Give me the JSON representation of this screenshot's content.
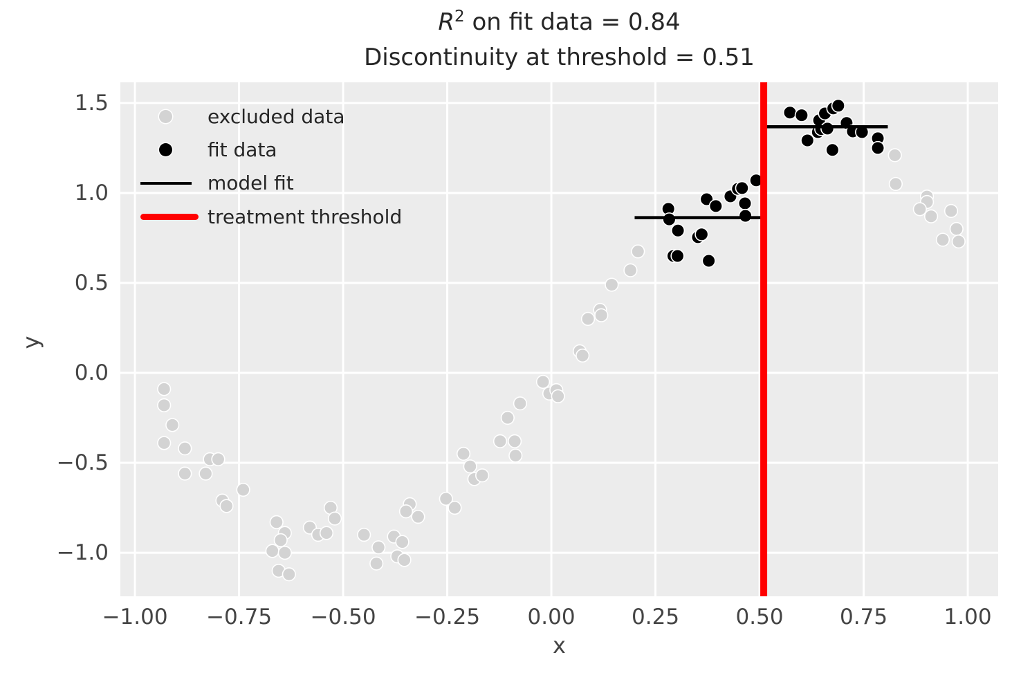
{
  "title": {
    "r_symbol": "R",
    "r_exponent": "2",
    "line1_rest": " on fit data = 0.84",
    "line2": "Discontinuity at threshold = 0.51"
  },
  "axes": {
    "xlabel": "x",
    "ylabel": "y",
    "x_ticks": [
      {
        "value": -1.0,
        "label": "−1.00"
      },
      {
        "value": -0.75,
        "label": "−0.75"
      },
      {
        "value": -0.5,
        "label": "−0.50"
      },
      {
        "value": -0.25,
        "label": "−0.25"
      },
      {
        "value": 0.0,
        "label": "0.00"
      },
      {
        "value": 0.25,
        "label": "0.25"
      },
      {
        "value": 0.5,
        "label": "0.50"
      },
      {
        "value": 0.75,
        "label": "0.75"
      },
      {
        "value": 1.0,
        "label": "1.00"
      }
    ],
    "y_ticks": [
      {
        "value": 1.5,
        "label": "1.5"
      },
      {
        "value": 1.0,
        "label": "1.0"
      },
      {
        "value": 0.5,
        "label": "0.5"
      },
      {
        "value": 0.0,
        "label": "0.0"
      },
      {
        "value": -0.5,
        "label": "−0.5"
      },
      {
        "value": -1.0,
        "label": "−1.0"
      }
    ]
  },
  "legend": {
    "items": [
      {
        "label": "excluded data",
        "marker": "dot",
        "color": "#d3d3d3"
      },
      {
        "label": "fit data",
        "marker": "dot",
        "color": "#000000"
      },
      {
        "label": "model fit",
        "marker": "line",
        "color": "#000000"
      },
      {
        "label": "treatment threshold",
        "marker": "line-thick",
        "color": "#ff0000"
      }
    ]
  },
  "chart_data": {
    "type": "scatter",
    "title": "R^2 on fit data = 0.84\nDiscontinuity at threshold = 0.51",
    "xlabel": "x",
    "ylabel": "y",
    "xlim": [
      -1.035,
      1.073
    ],
    "ylim": [
      -1.242,
      1.615
    ],
    "grid": true,
    "background_color": "#ececec",
    "gridline_color": "#ffffff",
    "r2_on_fit_data": 0.84,
    "discontinuity_at_threshold": 0.51,
    "treatment_threshold": {
      "x": 0.51,
      "color": "#ff0000",
      "linewidth": 10
    },
    "model_fit": {
      "color": "#000000",
      "linewidth": 4.5,
      "segments": [
        {
          "x_start": 0.2,
          "x_end": 0.51,
          "y": 0.863
        },
        {
          "x_start": 0.51,
          "x_end": 0.808,
          "y": 1.368
        }
      ]
    },
    "series": [
      {
        "name": "excluded data",
        "color": "#d3d3d3",
        "edge_color": "#ffffff",
        "points": [
          [
            -0.93,
            -0.09
          ],
          [
            -0.93,
            -0.18
          ],
          [
            -0.91,
            -0.29
          ],
          [
            -0.93,
            -0.39
          ],
          [
            -0.88,
            -0.42
          ],
          [
            -0.82,
            -0.48
          ],
          [
            -0.8,
            -0.48
          ],
          [
            -0.88,
            -0.56
          ],
          [
            -0.83,
            -0.56
          ],
          [
            -0.74,
            -0.65
          ],
          [
            -0.79,
            -0.71
          ],
          [
            -0.78,
            -0.74
          ],
          [
            -0.66,
            -0.83
          ],
          [
            -0.64,
            -0.89
          ],
          [
            -0.65,
            -0.93
          ],
          [
            -0.58,
            -0.86
          ],
          [
            -0.56,
            -0.9
          ],
          [
            -0.54,
            -0.89
          ],
          [
            -0.53,
            -0.75
          ],
          [
            -0.52,
            -0.81
          ],
          [
            -0.67,
            -0.99
          ],
          [
            -0.64,
            -1.0
          ],
          [
            -0.655,
            -1.1
          ],
          [
            -0.63,
            -1.12
          ],
          [
            -0.45,
            -0.9
          ],
          [
            -0.415,
            -0.97
          ],
          [
            -0.42,
            -1.06
          ],
          [
            -0.378,
            -0.91
          ],
          [
            -0.37,
            -1.02
          ],
          [
            -0.358,
            -0.94
          ],
          [
            -0.353,
            -1.04
          ],
          [
            -0.34,
            -0.73
          ],
          [
            -0.349,
            -0.77
          ],
          [
            -0.32,
            -0.8
          ],
          [
            -0.253,
            -0.7
          ],
          [
            -0.232,
            -0.75
          ],
          [
            -0.211,
            -0.45
          ],
          [
            -0.195,
            -0.52
          ],
          [
            -0.185,
            -0.59
          ],
          [
            -0.166,
            -0.57
          ],
          [
            -0.123,
            -0.38
          ],
          [
            -0.105,
            -0.25
          ],
          [
            -0.088,
            -0.38
          ],
          [
            -0.086,
            -0.46
          ],
          [
            -0.075,
            -0.17
          ],
          [
            -0.02,
            -0.05
          ],
          [
            -0.005,
            -0.115
          ],
          [
            0.012,
            -0.096
          ],
          [
            0.016,
            -0.13
          ],
          [
            0.068,
            0.12
          ],
          [
            0.075,
            0.096
          ],
          [
            0.088,
            0.3
          ],
          [
            0.117,
            0.35
          ],
          [
            0.12,
            0.32
          ],
          [
            0.145,
            0.49
          ],
          [
            0.19,
            0.57
          ],
          [
            0.208,
            0.675
          ],
          [
            0.825,
            1.21
          ],
          [
            0.827,
            1.05
          ],
          [
            0.902,
            0.98
          ],
          [
            0.902,
            0.95
          ],
          [
            0.885,
            0.91
          ],
          [
            0.912,
            0.87
          ],
          [
            0.96,
            0.9
          ],
          [
            0.973,
            0.8
          ],
          [
            0.94,
            0.74
          ],
          [
            0.978,
            0.73
          ]
        ]
      },
      {
        "name": "fit data",
        "color": "#000000",
        "edge_color": "#ffffff",
        "points": [
          [
            0.281,
            0.912
          ],
          [
            0.283,
            0.853
          ],
          [
            0.304,
            0.791
          ],
          [
            0.352,
            0.754
          ],
          [
            0.361,
            0.77
          ],
          [
            0.373,
            0.965
          ],
          [
            0.395,
            0.927
          ],
          [
            0.43,
            0.981
          ],
          [
            0.448,
            1.023
          ],
          [
            0.458,
            1.027
          ],
          [
            0.465,
            0.942
          ],
          [
            0.466,
            0.873
          ],
          [
            0.492,
            1.07
          ],
          [
            0.293,
            0.65
          ],
          [
            0.303,
            0.65
          ],
          [
            0.378,
            0.623
          ],
          [
            0.573,
            1.447
          ],
          [
            0.601,
            1.432
          ],
          [
            0.615,
            1.292
          ],
          [
            0.64,
            1.338
          ],
          [
            0.648,
            1.355
          ],
          [
            0.643,
            1.404
          ],
          [
            0.657,
            1.442
          ],
          [
            0.663,
            1.358
          ],
          [
            0.677,
            1.47
          ],
          [
            0.689,
            1.485
          ],
          [
            0.675,
            1.239
          ],
          [
            0.709,
            1.389
          ],
          [
            0.724,
            1.342
          ],
          [
            0.746,
            1.338
          ],
          [
            0.784,
            1.304
          ],
          [
            0.784,
            1.25
          ]
        ]
      }
    ]
  }
}
